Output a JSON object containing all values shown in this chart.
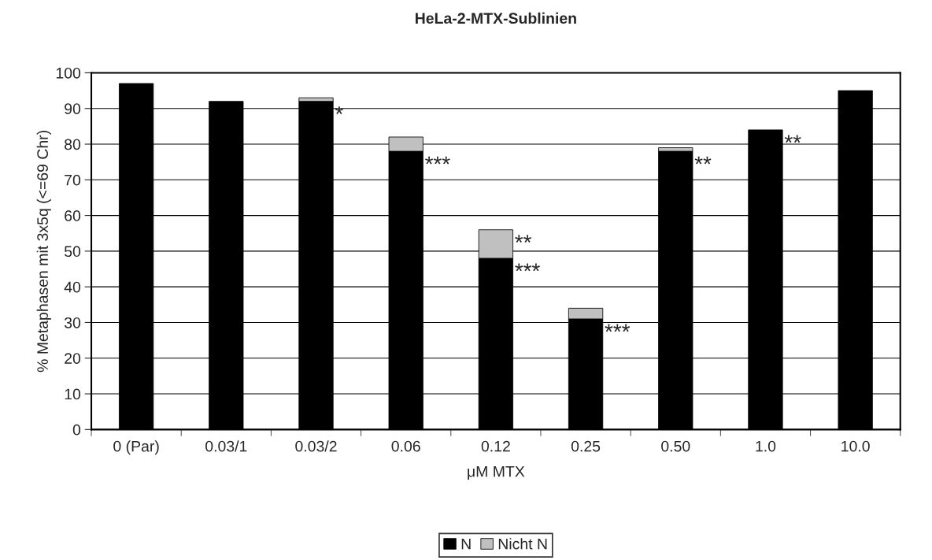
{
  "chart_data": {
    "type": "bar",
    "title": "HeLa-2-MTX-Sublinien",
    "xlabel": "μM MTX",
    "ylabel": "% Metaphasen mit 3x5q (<=69 Chr)",
    "categories": [
      "0 (Par)",
      "0.03/1",
      "0.03/2",
      "0.06",
      "0.12",
      "0.25",
      "0.50",
      "1.0",
      "10.0"
    ],
    "stacked": true,
    "series": [
      {
        "name": "N",
        "color": "#000000",
        "values": [
          97,
          92,
          92,
          78,
          48,
          31,
          78,
          84,
          95
        ]
      },
      {
        "name": "Nicht N",
        "color": "#c0c0c0",
        "values": [
          null,
          null,
          1,
          4,
          8,
          3,
          1,
          null,
          null
        ]
      }
    ],
    "ylim": [
      0,
      100
    ],
    "yticks": [
      0,
      10,
      20,
      30,
      40,
      50,
      60,
      70,
      80,
      90,
      100
    ],
    "grid": "y",
    "legend": "bottom",
    "annotations": [
      {
        "text": "*",
        "x": "0.03/2",
        "y": 92
      },
      {
        "text": "***",
        "x": "0.06",
        "y": 78
      },
      {
        "text": "**",
        "x": "0.12",
        "y": 56
      },
      {
        "text": "***",
        "x": "0.12",
        "y": 48
      },
      {
        "text": "***",
        "x": "0.25",
        "y": 31
      },
      {
        "text": "**",
        "x": "0.50",
        "y": 78
      },
      {
        "text": "**",
        "x": "1.0",
        "y": 84
      }
    ]
  }
}
